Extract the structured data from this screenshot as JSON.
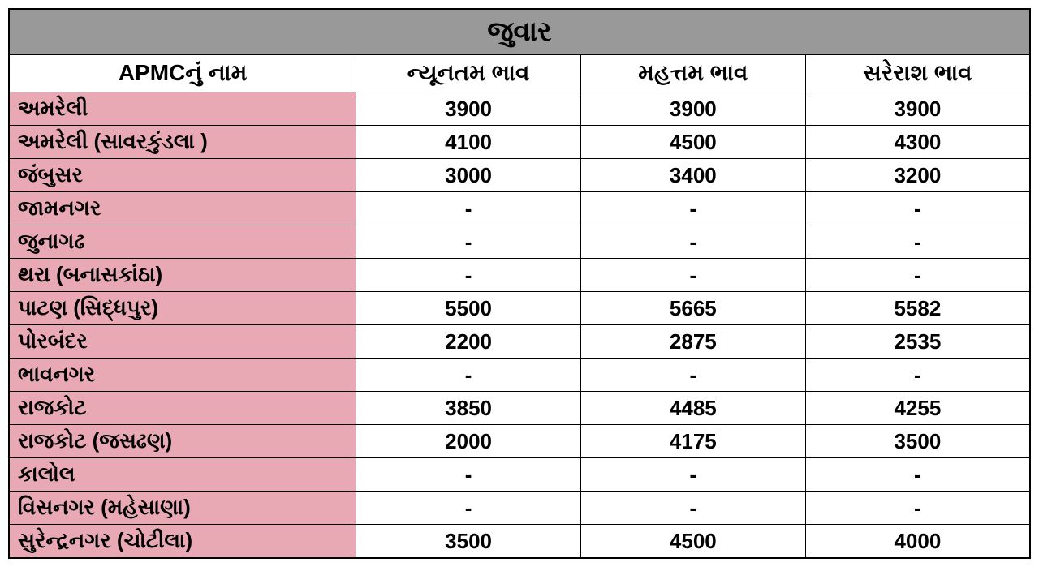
{
  "table": {
    "type": "table",
    "title": "જુવાર",
    "columns": [
      "APMCનું નામ",
      "ન્યૂનતમ ભાવ",
      "મહત્તમ ભાવ",
      "સરેરાશ ભાવ"
    ],
    "rows": [
      {
        "name": "અમરેલી",
        "min": "3900",
        "max": "3900",
        "avg": "3900"
      },
      {
        "name": "અમરેલી (સાવરકુંડલા )",
        "min": "4100",
        "max": "4500",
        "avg": "4300"
      },
      {
        "name": "જંબુસર",
        "min": "3000",
        "max": "3400",
        "avg": "3200"
      },
      {
        "name": "જામનગર",
        "min": "-",
        "max": "-",
        "avg": "-"
      },
      {
        "name": "જુનાગઢ",
        "min": "-",
        "max": "-",
        "avg": "-"
      },
      {
        "name": "થરા (બનાસકાંઠા)",
        "min": "-",
        "max": "-",
        "avg": "-"
      },
      {
        "name": "પાટણ (સિદ્ધપુર)",
        "min": "5500",
        "max": "5665",
        "avg": "5582"
      },
      {
        "name": "પોરબંદર",
        "min": "2200",
        "max": "2875",
        "avg": "2535"
      },
      {
        "name": "ભાવનગર",
        "min": "-",
        "max": "-",
        "avg": "-"
      },
      {
        "name": "રાજકોટ",
        "min": "3850",
        "max": "4485",
        "avg": "4255"
      },
      {
        "name": "રાજકોટ  (જસઢણ)",
        "min": "2000",
        "max": "4175",
        "avg": "3500"
      },
      {
        "name": "કાલોલ",
        "min": "-",
        "max": "-",
        "avg": "-"
      },
      {
        "name": "વિસનગર (મહેસાણા)",
        "min": "-",
        "max": "-",
        "avg": "-"
      },
      {
        "name": "સુરેન્દ્રનગર (ચોટીલા)",
        "min": "3500",
        "max": "4500",
        "avg": "4000"
      }
    ],
    "colors": {
      "title_bg": "#999999",
      "header_bg": "#ffffff",
      "name_bg": "#e8a9b5",
      "value_bg": "#ffffff",
      "border": "#000000",
      "text": "#000000"
    },
    "font": {
      "title_size": 34,
      "header_size": 28,
      "cell_size": 26,
      "weight": "bold"
    },
    "column_widths": [
      "34%",
      "22%",
      "22%",
      "22%"
    ]
  }
}
